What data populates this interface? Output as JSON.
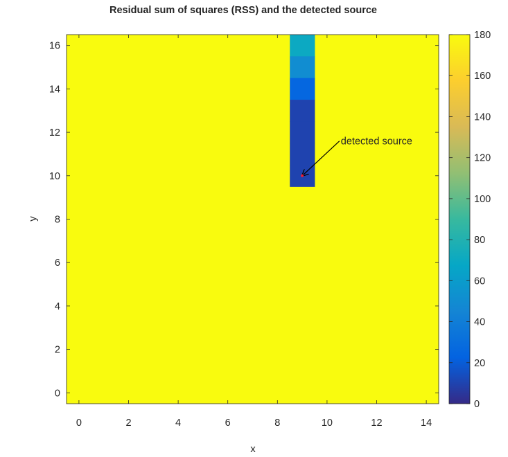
{
  "chart_data": {
    "type": "heatmap",
    "title": "Residual sum of squares (RSS) and the detected source",
    "xlabel": "x",
    "ylabel": "y",
    "xlim": [
      -0.5,
      14.5
    ],
    "ylim": [
      -0.5,
      16.5
    ],
    "xticks": [
      0,
      2,
      4,
      6,
      8,
      10,
      12,
      14
    ],
    "yticks": [
      0,
      2,
      4,
      6,
      8,
      10,
      12,
      14,
      16
    ],
    "colormap": "parula",
    "clim": [
      0,
      180
    ],
    "colorbar_ticks": [
      0,
      20,
      40,
      60,
      80,
      100,
      120,
      140,
      160,
      180
    ],
    "grid": false,
    "background_value": 180,
    "cells": [
      {
        "x": 9,
        "y": 16,
        "value": 70
      },
      {
        "x": 9,
        "y": 15,
        "value": 50
      },
      {
        "x": 9,
        "y": 14,
        "value": 25
      },
      {
        "x": 9,
        "y": 13,
        "value": 10
      },
      {
        "x": 9,
        "y": 12,
        "value": 10
      },
      {
        "x": 9,
        "y": 11,
        "value": 10
      },
      {
        "x": 9,
        "y": 10,
        "value": 10
      }
    ],
    "detected_source": {
      "x": 9,
      "y": 10
    },
    "annotation": {
      "text": "detected source",
      "x": 10.5,
      "y": 11.6,
      "arrow_to": [
        9,
        10
      ]
    }
  },
  "colors": {
    "source_marker": "#e8203a",
    "arrow": "#000000",
    "axes": "#262626"
  }
}
